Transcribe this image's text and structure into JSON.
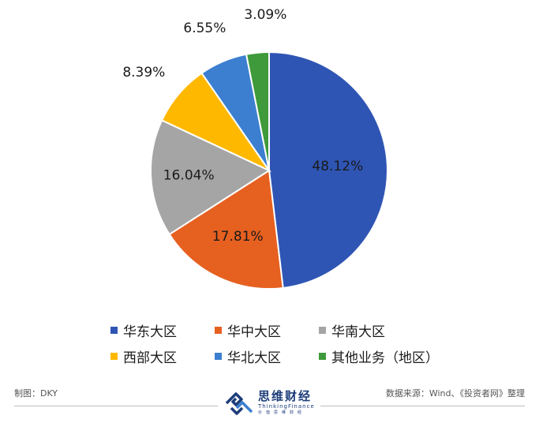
{
  "chart_data": {
    "type": "pie",
    "categories": [
      "华东大区",
      "华中大区",
      "华南大区",
      "西部大区",
      "华北大区",
      "其他业务（地区）"
    ],
    "values": [
      48.12,
      17.81,
      16.04,
      8.39,
      6.55,
      3.09
    ],
    "labels": [
      "48.12%",
      "17.81%",
      "16.04%",
      "8.39%",
      "6.55%",
      "3.09%"
    ],
    "colors": [
      "#2F55B4",
      "#E66020",
      "#A5A5A5",
      "#FFB800",
      "#3C7FD0",
      "#3E9A3A"
    ],
    "legend_position": "bottom",
    "start_angle": "12 o'clock, clockwise"
  },
  "footer": {
    "author": "制图：DKY",
    "source": "数据来源：Wind、《投资者网》整理",
    "logo_cn": "思维财经",
    "logo_en": "ThinkingFinance",
    "logo_sub": "价值思维财经"
  }
}
